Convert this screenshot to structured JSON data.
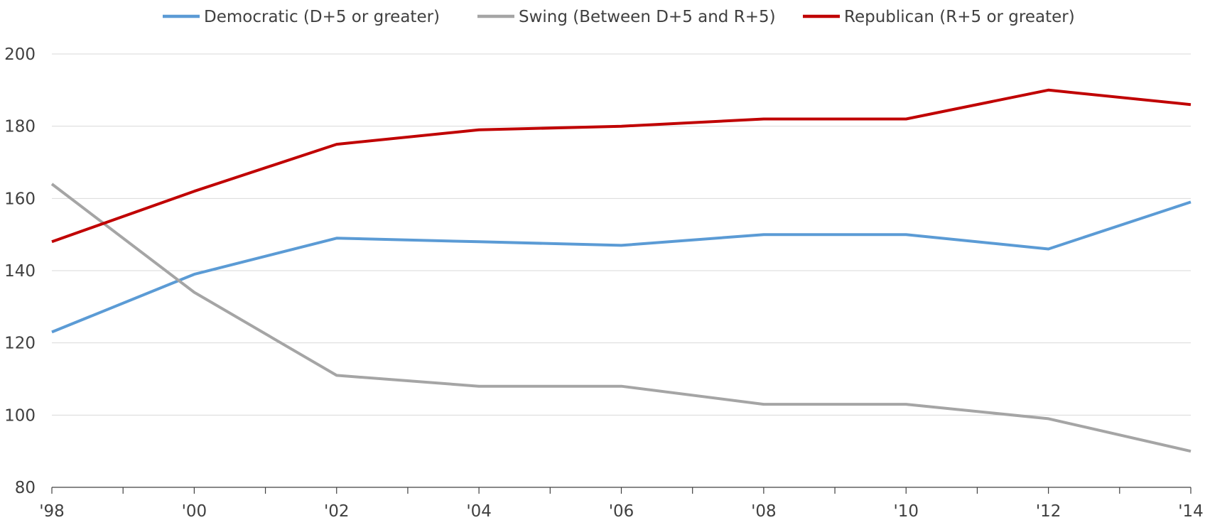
{
  "chart_data": {
    "type": "line",
    "title": "",
    "xlabel": "",
    "ylabel": "",
    "x": [
      "'98",
      "'00",
      "'02",
      "'04",
      "'06",
      "'08",
      "'10",
      "'12",
      "'14"
    ],
    "ylim": [
      80,
      200
    ],
    "yticks": [
      80,
      100,
      120,
      140,
      160,
      180,
      200
    ],
    "grid": true,
    "legend_position": "top",
    "series": [
      {
        "name": "Democratic (D+5 or greater)",
        "color": "#5b9bd5",
        "values": [
          123,
          139,
          149,
          148,
          147,
          150,
          150,
          146,
          159
        ]
      },
      {
        "name": "Swing (Between D+5 and R+5)",
        "color": "#a5a5a5",
        "values": [
          164,
          134,
          111,
          108,
          108,
          103,
          103,
          99,
          90
        ]
      },
      {
        "name": "Republican (R+5 or greater)",
        "color": "#c00000",
        "values": [
          148,
          162,
          175,
          179,
          180,
          182,
          182,
          190,
          186
        ]
      }
    ]
  }
}
